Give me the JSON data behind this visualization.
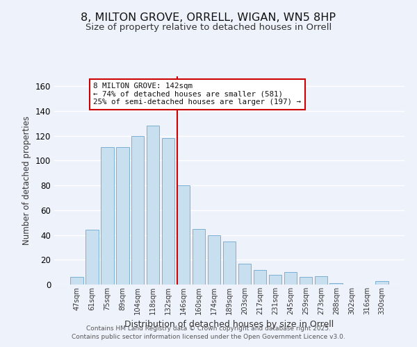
{
  "title": "8, MILTON GROVE, ORRELL, WIGAN, WN5 8HP",
  "subtitle": "Size of property relative to detached houses in Orrell",
  "xlabel": "Distribution of detached houses by size in Orrell",
  "ylabel": "Number of detached properties",
  "bar_labels": [
    "47sqm",
    "61sqm",
    "75sqm",
    "89sqm",
    "104sqm",
    "118sqm",
    "132sqm",
    "146sqm",
    "160sqm",
    "174sqm",
    "189sqm",
    "203sqm",
    "217sqm",
    "231sqm",
    "245sqm",
    "259sqm",
    "273sqm",
    "288sqm",
    "302sqm",
    "316sqm",
    "330sqm"
  ],
  "bar_values": [
    6,
    44,
    111,
    111,
    120,
    128,
    118,
    80,
    45,
    40,
    35,
    17,
    12,
    8,
    10,
    6,
    7,
    1,
    0,
    0,
    3
  ],
  "bar_color": "#c8dff0",
  "bar_edge_color": "#7ab0d4",
  "highlight_index": 7,
  "highlight_line_color": "#cc0000",
  "ylim": [
    0,
    168
  ],
  "yticks": [
    0,
    20,
    40,
    60,
    80,
    100,
    120,
    140,
    160
  ],
  "annotation_title": "8 MILTON GROVE: 142sqm",
  "annotation_line1": "← 74% of detached houses are smaller (581)",
  "annotation_line2": "25% of semi-detached houses are larger (197) →",
  "annotation_box_color": "#ffffff",
  "annotation_box_edge": "#cc0000",
  "footer_line1": "Contains HM Land Registry data © Crown copyright and database right 2025.",
  "footer_line2": "Contains public sector information licensed under the Open Government Licence v3.0.",
  "background_color": "#eef2fb",
  "title_fontsize": 11.5,
  "subtitle_fontsize": 9.5
}
